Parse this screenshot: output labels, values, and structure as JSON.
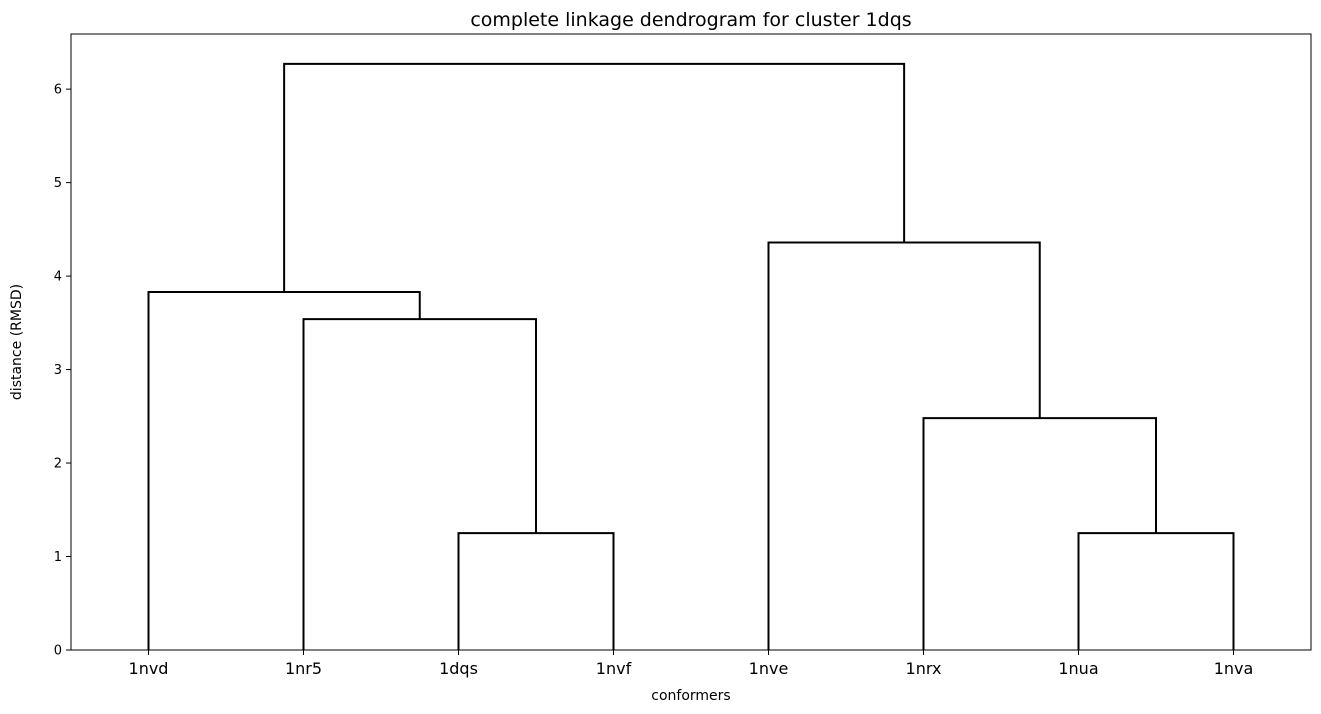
{
  "chart_data": {
    "type": "dendrogram",
    "title": "complete linkage dendrogram for cluster 1dqs",
    "xlabel": "conformers",
    "ylabel": "distance (RMSD)",
    "leaves": [
      "1nvd",
      "1nr5",
      "1dqs",
      "1nvf",
      "1nve",
      "1nrx",
      "1nua",
      "1nva"
    ],
    "ylim": [
      0,
      6.59
    ],
    "yticks": [
      0,
      1,
      2,
      3,
      4,
      5,
      6
    ],
    "grid": false,
    "line_color": "#000000",
    "merges": [
      {
        "a": "1dqs",
        "b": "1nvf",
        "height": 1.25,
        "id": "m1"
      },
      {
        "a": "1nua",
        "b": "1nva",
        "height": 1.25,
        "id": "m2"
      },
      {
        "a": "m2",
        "b": "1nrx",
        "height": 2.48,
        "id": "m3"
      },
      {
        "a": "1nr5",
        "b": "m1",
        "height": 3.54,
        "id": "m4"
      },
      {
        "a": "1nvd",
        "b": "m4",
        "height": 3.83,
        "id": "m5"
      },
      {
        "a": "1nve",
        "b": "m3",
        "height": 4.36,
        "id": "m6"
      },
      {
        "a": "m5",
        "b": "m6",
        "height": 6.27,
        "id": "m7"
      }
    ]
  }
}
